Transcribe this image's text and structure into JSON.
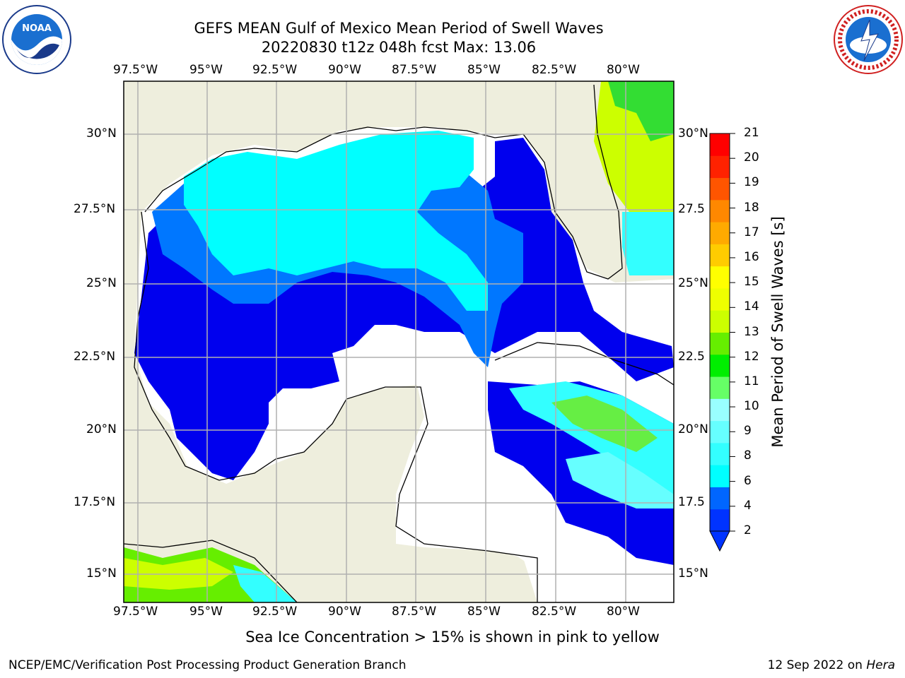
{
  "title": {
    "line1": "GEFS MEAN Gulf of Mexico Mean Period of Swell Waves",
    "line2": "20220830 t12z 048h fcst   Max: 13.06"
  },
  "logos": {
    "left": "noaa-logo",
    "right": "nws-logo",
    "left_text": "NOAA",
    "right_text": "NATIONAL WEATHER SERVICE"
  },
  "map": {
    "lon_labels": [
      "97.5°W",
      "95°W",
      "92.5°W",
      "90°W",
      "87.5°W",
      "85°W",
      "82.5°W",
      "80°W"
    ],
    "lat_labels_left": [
      "30°N",
      "27.5°N",
      "25°N",
      "22.5°N",
      "20°N",
      "17.5°N",
      "15°N"
    ],
    "lat_labels_right": [
      "30°N",
      "27.5",
      "25°N",
      "22.5",
      "20°N",
      "17.5",
      "15°N"
    ],
    "land_color": "#eeeedd",
    "ocean_missing_color": "#ffffff",
    "grid_color": "#b0b0b0"
  },
  "colorbar": {
    "title": "Mean Period of Swell Waves [s]",
    "labels": [
      "21",
      "20",
      "19",
      "18",
      "17",
      "16",
      "15",
      "14",
      "13",
      "12",
      "11",
      "10",
      "9",
      "8",
      "6",
      "4",
      "2"
    ],
    "colors": [
      "#0033ff",
      "#0066ff",
      "#00ffff",
      "#33ffff",
      "#66ffff",
      "#99ffff",
      "#66ff66",
      "#00ee00",
      "#66ee00",
      "#ccff00",
      "#eeff00",
      "#ffff00",
      "#ffcc00",
      "#ffaa00",
      "#ff8800",
      "#ff5500",
      "#ff2200",
      "#ff0000"
    ]
  },
  "note": "Sea Ice Concentration > 15% is shown in pink to yellow",
  "footer": {
    "left": "NCEP/EMC/Verification Post Processing Product Generation Branch",
    "right_date": "12 Sep 2022 on ",
    "right_host": "Hera"
  }
}
